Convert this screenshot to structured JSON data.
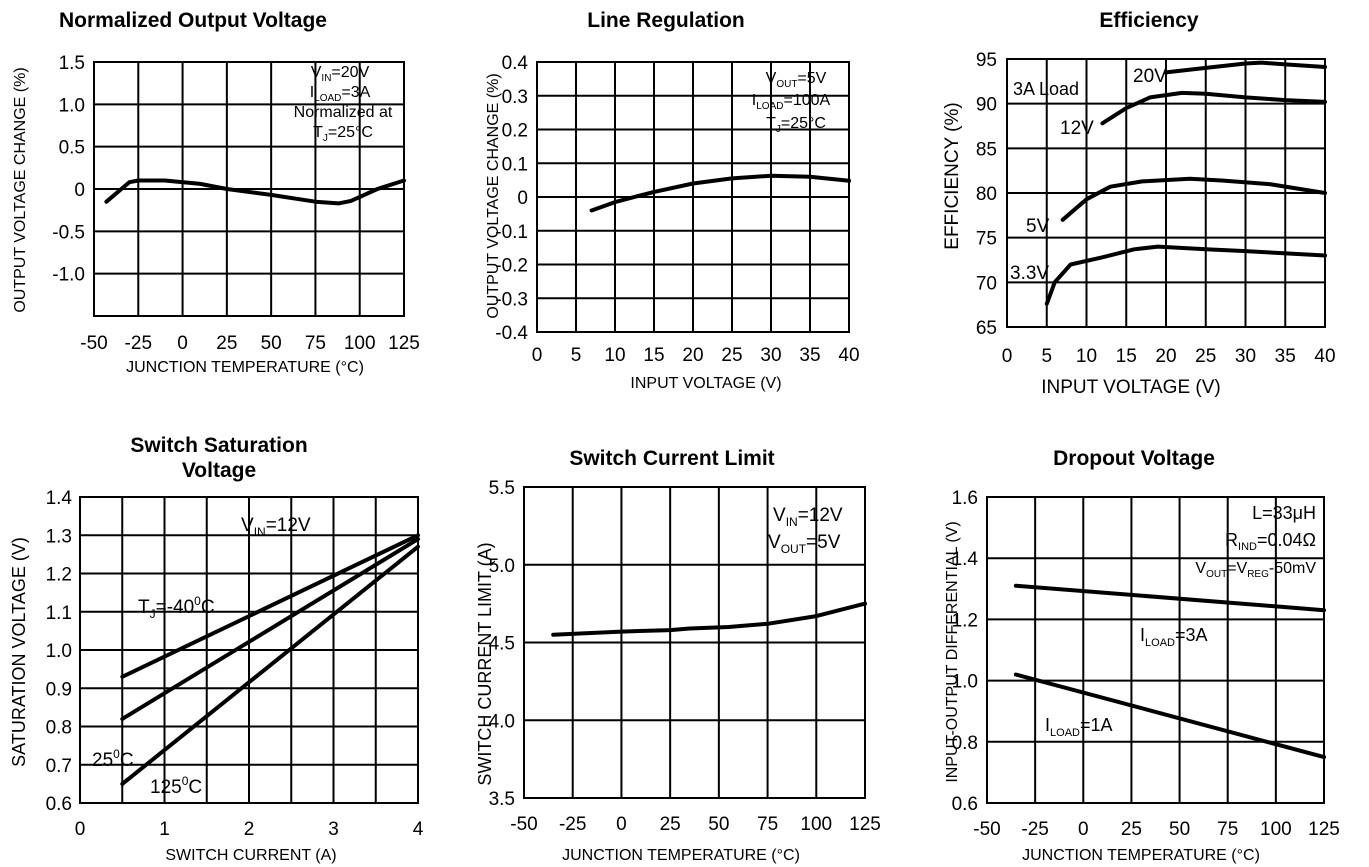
{
  "chart_data": [
    {
      "id": "c1",
      "type": "line",
      "title": [
        "Normalized Output Voltage"
      ],
      "xlabel": "JUNCTION TEMPERATURE (°C)",
      "ylabel": "OUTPUT VOLTAGE CHANGE (%)",
      "xlim": [
        -50,
        125
      ],
      "ylim": [
        -1.5,
        1.5
      ],
      "xticks": [
        -50,
        -25,
        0,
        25,
        50,
        75,
        100,
        125
      ],
      "yticks": [
        1.5,
        1.0,
        0.5,
        0,
        -0.5,
        -1.0
      ],
      "tick_labels_x": [
        "-50",
        "-25",
        "0",
        "25",
        "50",
        "75",
        "100",
        "125"
      ],
      "tick_labels_y": [
        "1.5",
        "1.0",
        "0.5",
        "0",
        "-0.5",
        "-1.0"
      ],
      "annotation": [
        "VIN=20V",
        "ILOAD=3A",
        "Normalized at",
        "TJ=25°C"
      ],
      "series": [
        {
          "values": [
            [
              -43,
              -0.15
            ],
            [
              -30,
              0.08
            ],
            [
              -25,
              0.1
            ],
            [
              -10,
              0.1
            ],
            [
              10,
              0.06
            ],
            [
              25,
              0.0
            ],
            [
              50,
              -0.07
            ],
            [
              75,
              -0.15
            ],
            [
              88,
              -0.17
            ],
            [
              95,
              -0.14
            ],
            [
              110,
              0.0
            ],
            [
              125,
              0.1
            ]
          ]
        }
      ]
    },
    {
      "id": "c2",
      "type": "line",
      "title": [
        "Line Regulation"
      ],
      "xlabel": "INPUT VOLTAGE (V)",
      "ylabel": "OUTPUT VOLTAGE CHANGE (%)",
      "xlim": [
        0,
        40
      ],
      "ylim": [
        -0.4,
        0.4
      ],
      "xticks": [
        0,
        5,
        10,
        15,
        20,
        25,
        30,
        35,
        40
      ],
      "yticks": [
        0.4,
        0.3,
        0.2,
        0.1,
        0,
        -0.1,
        -0.2,
        -0.3,
        -0.4
      ],
      "tick_labels_x": [
        "0",
        "5",
        "10",
        "15",
        "20",
        "25",
        "30",
        "35",
        "40"
      ],
      "tick_labels_y": [
        "0.4",
        "0.3",
        "0.2",
        "0.1",
        "0",
        "-0.1",
        "-0.2",
        "-0.3",
        "-0.4"
      ],
      "annotation": [
        "VOUT=5V",
        "ILOAD=100A",
        "TJ=25°C"
      ],
      "series": [
        {
          "values": [
            [
              7,
              -0.04
            ],
            [
              10,
              -0.015
            ],
            [
              15,
              0.015
            ],
            [
              20,
              0.04
            ],
            [
              25,
              0.055
            ],
            [
              30,
              0.063
            ],
            [
              35,
              0.06
            ],
            [
              40,
              0.048
            ]
          ]
        }
      ]
    },
    {
      "id": "c3",
      "type": "line",
      "title": [
        "Efficiency"
      ],
      "xlabel": "INPUT VOLTAGE (V)",
      "ylabel": "EFFICIENCY (%)",
      "xlim": [
        0,
        40
      ],
      "ylim": [
        65,
        95
      ],
      "xticks": [
        0,
        5,
        10,
        15,
        20,
        25,
        30,
        35,
        40
      ],
      "yticks": [
        95,
        90,
        85,
        80,
        75,
        70,
        65
      ],
      "tick_labels_x": [
        "0",
        "5",
        "10",
        "15",
        "20",
        "25",
        "30",
        "35",
        "40"
      ],
      "tick_labels_y": [
        "95",
        "90",
        "85",
        "80",
        "75",
        "70",
        "65"
      ],
      "annotation": [
        "3A Load"
      ],
      "series": [
        {
          "name": "20V",
          "values": [
            [
              20,
              93.5
            ],
            [
              25,
              94.0
            ],
            [
              30,
              94.5
            ],
            [
              32,
              94.6
            ],
            [
              35,
              94.4
            ],
            [
              40,
              94.1
            ]
          ]
        },
        {
          "name": "12V",
          "values": [
            [
              12,
              87.8
            ],
            [
              15,
              89.5
            ],
            [
              18,
              90.7
            ],
            [
              22,
              91.2
            ],
            [
              25,
              91.1
            ],
            [
              30,
              90.7
            ],
            [
              35,
              90.4
            ],
            [
              40,
              90.2
            ]
          ]
        },
        {
          "name": "5V",
          "values": [
            [
              7,
              77.0
            ],
            [
              10,
              79.3
            ],
            [
              13,
              80.7
            ],
            [
              17,
              81.3
            ],
            [
              23,
              81.6
            ],
            [
              27,
              81.4
            ],
            [
              33,
              81.0
            ],
            [
              40,
              80.0
            ]
          ]
        },
        {
          "name": "3.3V",
          "values": [
            [
              5,
              67.6
            ],
            [
              6,
              70.0
            ],
            [
              8,
              72.0
            ],
            [
              12,
              72.8
            ],
            [
              16,
              73.7
            ],
            [
              19,
              74.0
            ],
            [
              25,
              73.7
            ],
            [
              30,
              73.5
            ],
            [
              40,
              73.0
            ]
          ]
        }
      ]
    },
    {
      "id": "c4",
      "type": "line",
      "title": [
        "Switch Saturation",
        "Voltage"
      ],
      "xlabel": "SWITCH  CURRENT (A)",
      "ylabel": "SATURATION VOLTAGE (V)",
      "xlim": [
        0,
        4
      ],
      "ylim": [
        0.6,
        1.4
      ],
      "xticks": [
        0,
        0.5,
        1,
        1.5,
        2,
        2.5,
        3,
        3.5,
        4
      ],
      "yticks": [
        1.4,
        1.3,
        1.2,
        1.1,
        1.0,
        0.9,
        0.8,
        0.7,
        0.6
      ],
      "tick_labels_x": [
        "0",
        "1",
        "2",
        "3",
        "4"
      ],
      "tick_labels_x_at": [
        0,
        1,
        2,
        3,
        4
      ],
      "tick_labels_y": [
        "1.4",
        "1.3",
        "1.2",
        "1.1",
        "1.0",
        "0.9",
        "0.8",
        "0.7",
        "0.6"
      ],
      "annotation": [
        "VIN=12V"
      ],
      "series": [
        {
          "name": "TJ=-40°C",
          "values": [
            [
              0.5,
              0.93
            ],
            [
              4.0,
              1.3
            ]
          ]
        },
        {
          "name": "25°C",
          "values": [
            [
              0.5,
              0.82
            ],
            [
              4.0,
              1.29
            ]
          ]
        },
        {
          "name": "125°C",
          "values": [
            [
              0.5,
              0.65
            ],
            [
              4.0,
              1.27
            ]
          ]
        }
      ]
    },
    {
      "id": "c5",
      "type": "line",
      "title": [
        "Switch Current Limit"
      ],
      "xlabel": "JUNCTION TEMPERATURE (°C)",
      "ylabel": "SWITCH  CURRENT LIMIT (A)",
      "xlim": [
        -50,
        125
      ],
      "ylim": [
        3.5,
        5.5
      ],
      "xticks": [
        -50,
        -25,
        0,
        25,
        50,
        75,
        100,
        125
      ],
      "yticks": [
        5.5,
        5.0,
        4.5,
        4.0,
        3.5
      ],
      "tick_labels_x": [
        "-50",
        "-25",
        "0",
        "25",
        "50",
        "75",
        "100",
        "125"
      ],
      "tick_labels_y": [
        "5.5",
        "5.0",
        "4.5",
        "4.0",
        "3.5"
      ],
      "annotation": [
        "VIN=12V",
        "VOUT=5V"
      ],
      "series": [
        {
          "values": [
            [
              -35,
              4.55
            ],
            [
              0,
              4.57
            ],
            [
              25,
              4.58
            ],
            [
              35,
              4.59
            ],
            [
              55,
              4.6
            ],
            [
              75,
              4.62
            ],
            [
              100,
              4.67
            ],
            [
              125,
              4.75
            ]
          ]
        }
      ]
    },
    {
      "id": "c6",
      "type": "line",
      "title": [
        "Dropout Voltage"
      ],
      "xlabel": "JUNCTION TEMPERATURE (°C)",
      "ylabel": "INPUT-OUTPUT DIFFERENTIAL (V)",
      "xlim": [
        -50,
        125
      ],
      "ylim": [
        0.6,
        1.6
      ],
      "xticks": [
        -50,
        -25,
        0,
        25,
        50,
        75,
        100,
        125
      ],
      "yticks": [
        1.6,
        1.4,
        1.2,
        1.0,
        0.8,
        0.6
      ],
      "tick_labels_x": [
        "-50",
        "-25",
        "0",
        "25",
        "50",
        "75",
        "100",
        "125"
      ],
      "tick_labels_y": [
        "1.6",
        "1.4",
        "1.2",
        "1.0",
        "0.8",
        "0.6"
      ],
      "annotation": [
        "L=33μH",
        "RIND=0.04Ω",
        "VOUT=VREG-50mV"
      ],
      "series": [
        {
          "name": "ILOAD=3A",
          "values": [
            [
              -35,
              1.31
            ],
            [
              125,
              1.23
            ]
          ]
        },
        {
          "name": "ILOAD=1A",
          "values": [
            [
              -35,
              1.02
            ],
            [
              125,
              0.75
            ]
          ]
        }
      ]
    }
  ]
}
